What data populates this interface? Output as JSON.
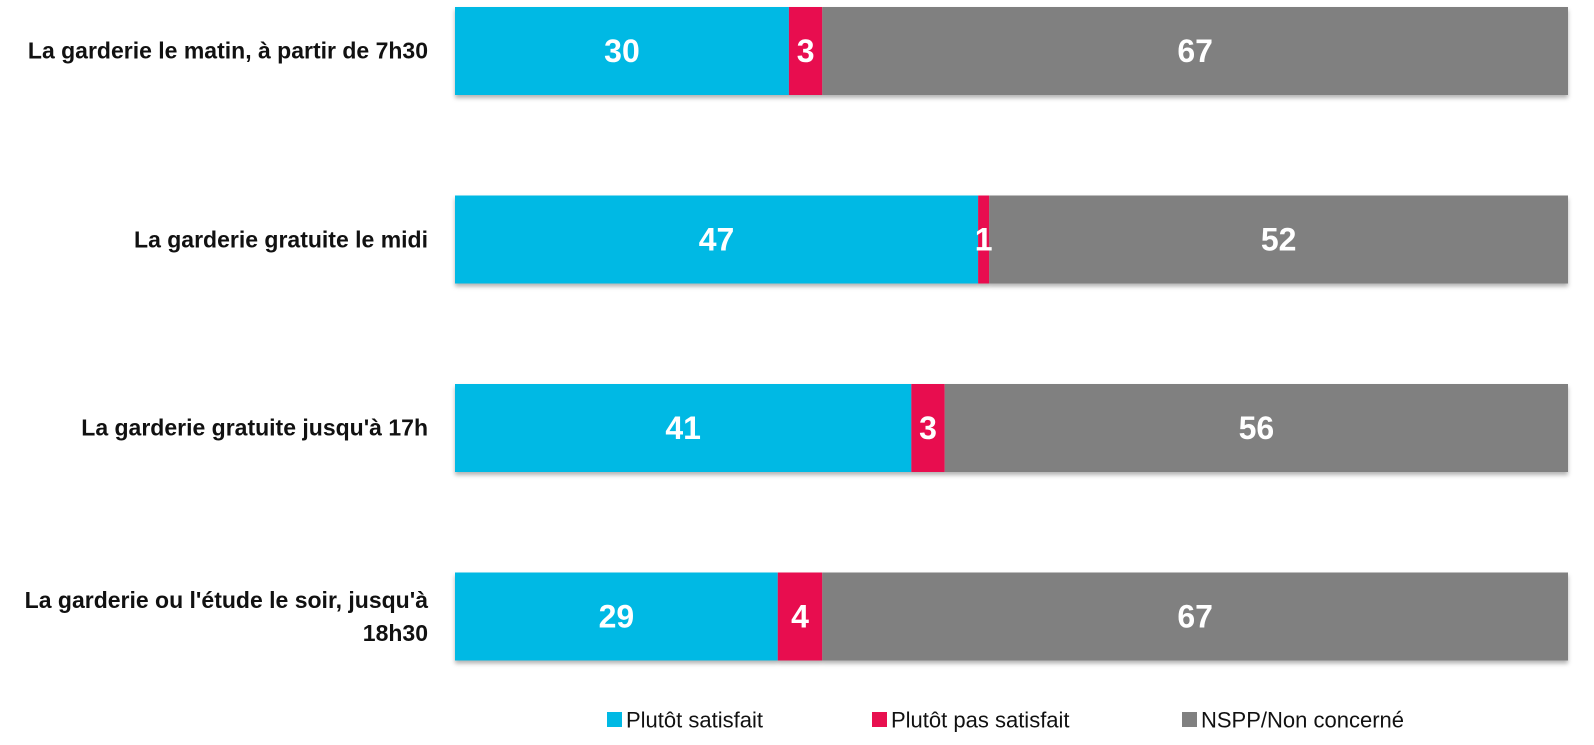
{
  "chart_data": {
    "type": "stacked-bar-horizontal",
    "categories": [
      "La garderie le matin, à partir de 7h30",
      "La garderie gratuite le midi",
      "La garderie gratuite jusqu'à 17h",
      "La garderie ou l'étude le soir, jusqu'à 18h30"
    ],
    "series": [
      {
        "name": "Plutôt satisfait",
        "color": "#00b9e4",
        "values": [
          30,
          47,
          41,
          29
        ]
      },
      {
        "name": "Plutôt pas satisfait",
        "color": "#e8104f",
        "values": [
          3,
          1,
          3,
          4
        ]
      },
      {
        "name": "NSPP/Non concerné",
        "color": "#808080",
        "values": [
          67,
          52,
          56,
          67
        ]
      }
    ],
    "xlim": [
      0,
      100
    ],
    "legend": "bottom"
  }
}
